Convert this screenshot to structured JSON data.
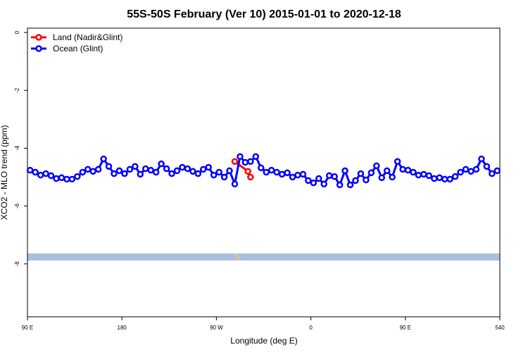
{
  "chart_data": {
    "type": "line",
    "title": "55S-50S February (Ver 10)   2015-01-01 to 2020-12-18",
    "x_label": "Longitude (deg E)",
    "y_label": "XCO2 - MLO trend (ppm)",
    "xlim": [
      90,
      540
    ],
    "ylim": [
      -9.83,
      0.15
    ],
    "xticks": [
      {
        "value": 90,
        "label": "90 E"
      },
      180,
      {
        "value": 270,
        "label": "90 W"
      },
      {
        "value": 360,
        "label": "0"
      },
      {
        "value": 450,
        "label": "90 E"
      },
      540
    ],
    "yticks": [
      0,
      -2,
      -4,
      -6,
      -8
    ],
    "legend": "top-left",
    "series": [
      {
        "name": "Land (Nadir&Glint)",
        "color": "#ff0000",
        "x": [
          287.5,
          300,
          302.5
        ],
        "values": [
          -4.46,
          -4.8,
          -5.0
        ]
      },
      {
        "name": "Ocean (Glint)",
        "color": "#0000ff",
        "x": [
          92.5,
          97.5,
          102.5,
          107.5,
          112.5,
          117.5,
          122.5,
          127.5,
          132.5,
          137.5,
          142.5,
          147.5,
          152.5,
          157.5,
          162.5,
          167.5,
          172.5,
          177.5,
          182.5,
          187.5,
          192.5,
          197.5,
          202.5,
          207.5,
          212.5,
          217.5,
          222.5,
          227.5,
          232.5,
          237.5,
          242.5,
          247.5,
          252.5,
          257.5,
          262.5,
          267.5,
          272.5,
          277.5,
          282.5,
          287.5,
          292.5,
          297.5,
          302.5,
          307.5,
          312.5,
          317.5,
          322.5,
          327.5,
          332.5,
          337.5,
          342.5,
          347.5,
          352.5,
          357.5,
          362.5,
          367.5,
          372.5,
          377.5,
          382.5,
          387.5,
          392.5,
          397.5,
          402.5,
          407.5,
          412.5,
          417.5,
          422.5,
          427.5,
          432.5,
          437.5,
          442.5,
          447.5,
          452.5,
          457.5,
          462.5,
          467.5,
          472.5,
          477.5,
          482.5,
          487.5,
          492.5,
          497.5,
          502.5,
          507.5,
          512.5,
          517.5,
          522.5,
          527.5,
          532.5,
          537.5
        ],
        "values": [
          -4.76,
          -4.83,
          -4.93,
          -4.88,
          -4.95,
          -5.05,
          -5.02,
          -5.07,
          -5.07,
          -4.98,
          -4.83,
          -4.73,
          -4.8,
          -4.73,
          -4.37,
          -4.63,
          -4.88,
          -4.78,
          -4.88,
          -4.73,
          -4.63,
          -4.9,
          -4.71,
          -4.76,
          -4.83,
          -4.54,
          -4.71,
          -4.88,
          -4.78,
          -4.66,
          -4.71,
          -4.8,
          -4.88,
          -4.73,
          -4.66,
          -4.93,
          -4.83,
          -5.0,
          -4.78,
          -5.24,
          -4.29,
          -4.49,
          -4.46,
          -4.29,
          -4.68,
          -4.83,
          -4.76,
          -4.83,
          -4.9,
          -4.85,
          -5.0,
          -4.93,
          -4.9,
          -5.12,
          -5.2,
          -5.05,
          -5.24,
          -4.95,
          -4.98,
          -5.27,
          -4.78,
          -5.27,
          -5.12,
          -4.88,
          -5.1,
          -4.85,
          -4.61,
          -5.02,
          -4.78,
          -5.0,
          -4.46,
          -4.73,
          -4.76,
          -4.83,
          -4.93,
          -4.9,
          -4.95,
          -5.05,
          -5.02,
          -5.07,
          -5.07,
          -4.98,
          -4.83,
          -4.73,
          -4.8,
          -4.73,
          -4.37,
          -4.63,
          -4.88,
          -4.78
        ]
      }
    ]
  }
}
